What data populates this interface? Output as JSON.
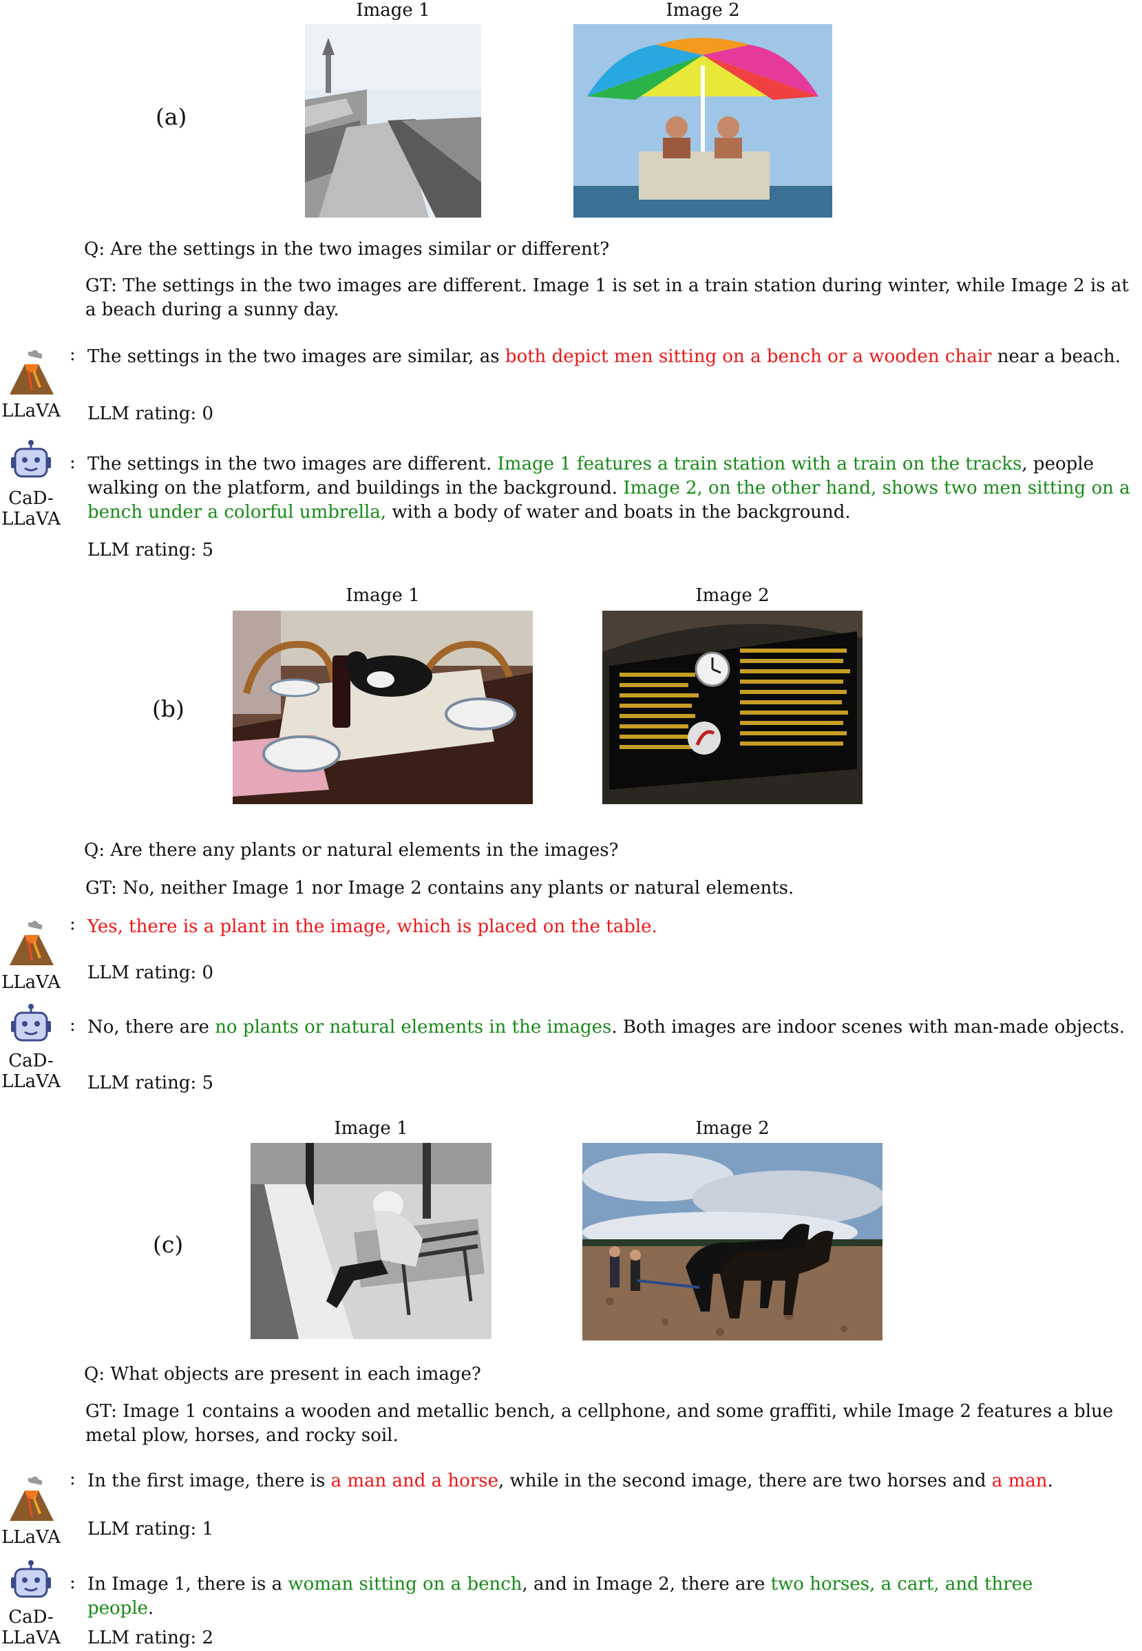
{
  "models": {
    "llava": "LLaVA",
    "cad_llava_line1": "CaD-",
    "cad_llava_line2": "LLaVA"
  },
  "image_captions": {
    "img1": "Image 1",
    "img2": "Image 2"
  },
  "examples": [
    {
      "label": "(a)",
      "question": "Q: Are the settings in the two images similar or different?",
      "gt": "GT: The settings in the two images are different. Image 1 is set in a train station during winter, while Image 2 is at a beach during a sunny day.",
      "llava": {
        "p1": "The settings in the two images are similar, as ",
        "p2": "both depict men sitting on a bench or a wooden chair",
        "p3": " near a beach.",
        "rating": "LLM rating: 0"
      },
      "cad": {
        "p1": "The settings in the two images are different. ",
        "p2": "Image 1 features a train station with a train on the tracks",
        "p3": ", people walking on the platform, and buildings in the background. ",
        "p4": "Image 2, on the other hand, shows two men sitting on a bench under a colorful umbrella,",
        "p5": " with a body of water and boats in the background.",
        "rating": "LLM rating: 5"
      }
    },
    {
      "label": "(b)",
      "question": "Q: Are there any plants or natural elements in the images?",
      "gt": "GT: No, neither Image 1 nor Image 2 contains any plants or natural elements.",
      "llava": {
        "p1": "Yes, there is a plant in the image, which is placed on the table.",
        "rating": "LLM rating: 0"
      },
      "cad": {
        "p1": "No, there are ",
        "p2": "no plants or natural elements in the images",
        "p3": ". Both images are indoor scenes with man-made objects.",
        "rating": "LLM rating: 5"
      }
    },
    {
      "label": "(c)",
      "question": "Q: What objects are present in each image?",
      "gt": "GT:  Image 1 contains a wooden and metallic bench, a cellphone, and some graffiti, while Image 2 features a blue metal plow, horses, and rocky soil.",
      "llava": {
        "p1": "In the first image, there is ",
        "p2": "a man and a horse",
        "p3": ", while in the second image, there are two horses and ",
        "p4": "a man",
        "p5": ".",
        "rating": "LLM rating: 1"
      },
      "cad": {
        "p1": "In Image 1, there is a ",
        "p2": "woman sitting on a bench",
        "p3": ", and in Image 2, there are ",
        "p4": "two horses, a cart, and three people",
        "p5": ".",
        "rating": "LLM rating: 2"
      }
    }
  ],
  "colors": {
    "incorrect": "#f01616",
    "correct": "#178a17",
    "text": "#111111"
  },
  "icons": {
    "llava": "volcano-icon",
    "cad_llava": "robot-icon"
  }
}
